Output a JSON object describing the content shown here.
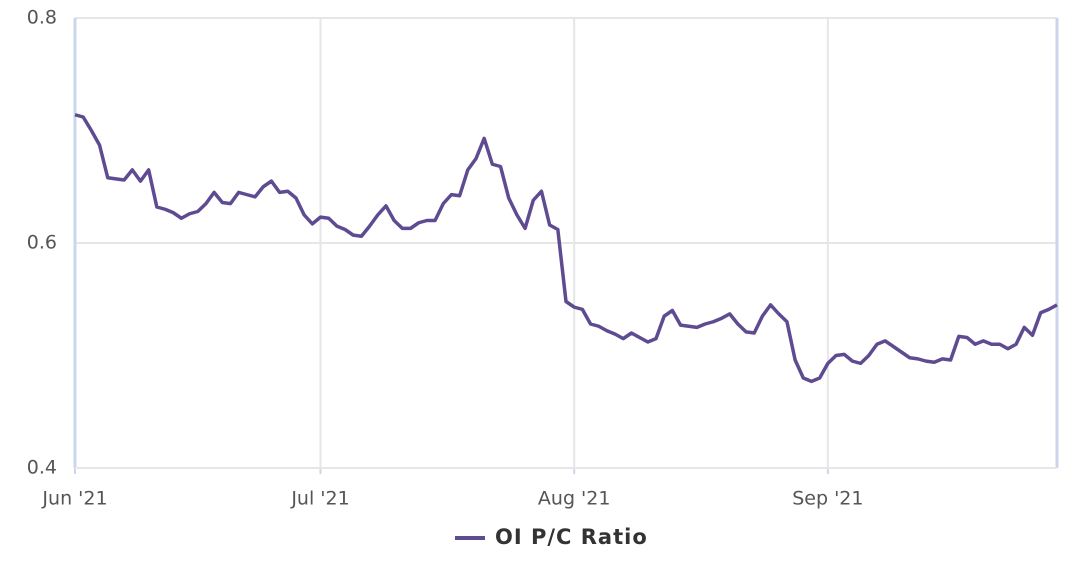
{
  "chart_data": {
    "type": "line",
    "series": [
      {
        "name": "OI P/C Ratio",
        "color": "#5e4b91",
        "values": [
          0.714,
          0.712,
          0.7,
          0.687,
          0.658,
          0.657,
          0.656,
          0.665,
          0.655,
          0.665,
          0.632,
          0.63,
          0.627,
          0.622,
          0.626,
          0.628,
          0.635,
          0.645,
          0.636,
          0.635,
          0.645,
          0.643,
          0.641,
          0.65,
          0.655,
          0.645,
          0.646,
          0.64,
          0.625,
          0.617,
          0.623,
          0.622,
          0.615,
          0.612,
          0.607,
          0.606,
          0.615,
          0.625,
          0.633,
          0.62,
          0.613,
          0.613,
          0.618,
          0.62,
          0.62,
          0.635,
          0.643,
          0.642,
          0.665,
          0.675,
          0.693,
          0.67,
          0.668,
          0.64,
          0.625,
          0.613,
          0.638,
          0.646,
          0.616,
          0.612,
          0.548,
          0.543,
          0.541,
          0.528,
          0.526,
          0.522,
          0.519,
          0.515,
          0.52,
          0.516,
          0.512,
          0.515,
          0.535,
          0.54,
          0.527,
          0.526,
          0.525,
          0.528,
          0.53,
          0.533,
          0.537,
          0.528,
          0.521,
          0.52,
          0.535,
          0.545,
          0.537,
          0.53,
          0.496,
          0.48,
          0.477,
          0.48,
          0.493,
          0.5,
          0.501,
          0.495,
          0.493,
          0.5,
          0.51,
          0.513,
          0.508,
          0.503,
          0.498,
          0.497,
          0.495,
          0.494,
          0.497,
          0.496,
          0.517,
          0.516,
          0.51,
          0.513,
          0.51,
          0.51,
          0.506,
          0.51,
          0.525,
          0.518,
          0.538,
          0.541,
          0.545
        ]
      }
    ],
    "xlim": [
      0,
      120
    ],
    "xticks": [
      {
        "value": 0,
        "label": "Jun '21"
      },
      {
        "value": 30,
        "label": "Jul '21"
      },
      {
        "value": 61,
        "label": "Aug '21"
      },
      {
        "value": 92,
        "label": "Sep '21"
      }
    ],
    "ylim": [
      0.4,
      0.8
    ],
    "yticks": [
      0.4,
      0.6,
      0.8
    ],
    "grid": true,
    "legend": "bottom"
  }
}
